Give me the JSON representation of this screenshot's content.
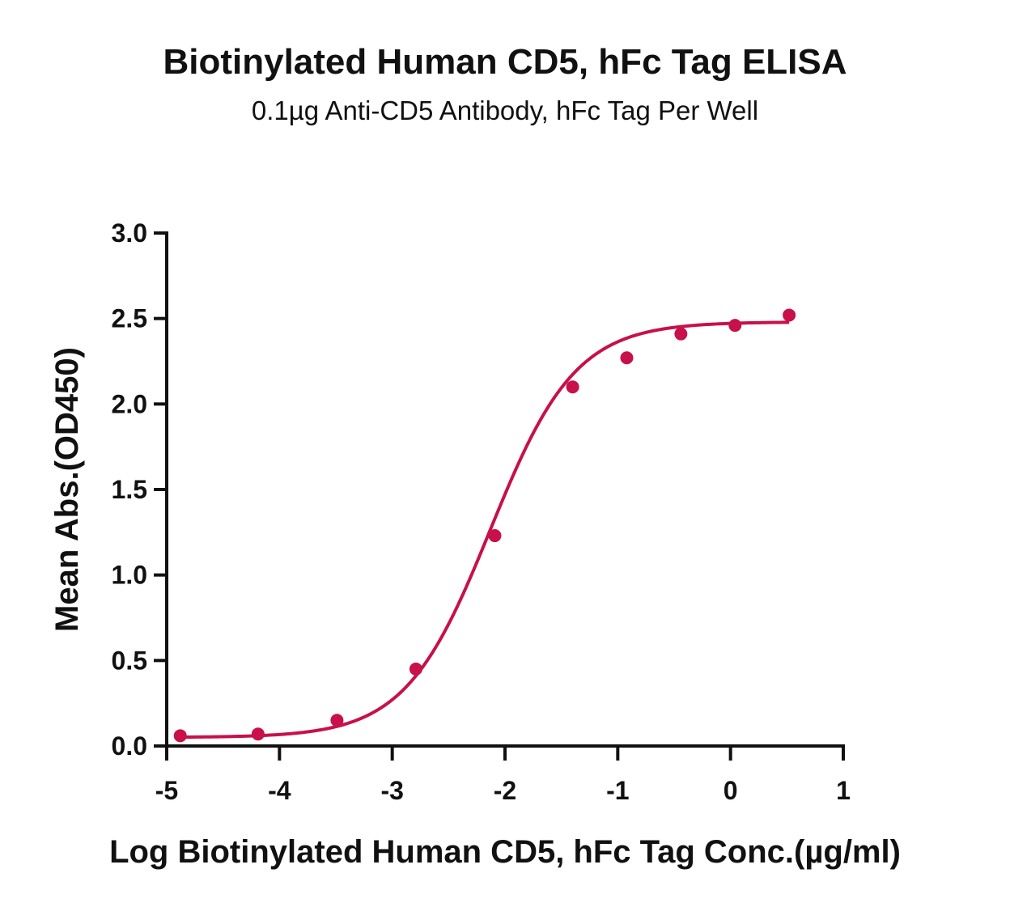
{
  "colors": {
    "series": "#C8104A",
    "axis": "#111111",
    "background": "#ffffff"
  },
  "chart_data": {
    "type": "scatter",
    "title": "Biotinylated Human CD5, hFc Tag ELISA",
    "subtitle": "0.1µg Anti-CD5 Antibody, hFc Tag Per Well",
    "xlabel": "Log Biotinylated Human CD5, hFc Tag Conc.(µg/ml)",
    "ylabel": "Mean Abs.(OD450)",
    "xlim": [
      -5,
      1
    ],
    "ylim": [
      0,
      3.0
    ],
    "x_ticks": [
      -5,
      -4,
      -3,
      -2,
      -1,
      0,
      1
    ],
    "x_tick_labels": [
      "-5",
      "-4",
      "-3",
      "-2",
      "-1",
      "0",
      "1"
    ],
    "y_ticks": [
      0,
      0.5,
      1.0,
      1.5,
      2.0,
      2.5,
      3.0
    ],
    "y_tick_labels": [
      "0.0",
      "0.5",
      "1.0",
      "1.5",
      "2.0",
      "2.5",
      "3.0"
    ],
    "grid": false,
    "series": [
      {
        "x": [
          -4.88,
          -4.19,
          -3.49,
          -2.79,
          -2.09,
          -1.4,
          -0.92,
          -0.44,
          0.04,
          0.52
        ],
        "y": [
          0.06,
          0.07,
          0.15,
          0.45,
          1.23,
          2.1,
          2.27,
          2.41,
          2.46,
          2.52
        ],
        "fit": {
          "model": "4PL",
          "bottom": 0.05,
          "top": 2.48,
          "log_ec50": -2.13,
          "hill": 1.15
        }
      }
    ]
  }
}
